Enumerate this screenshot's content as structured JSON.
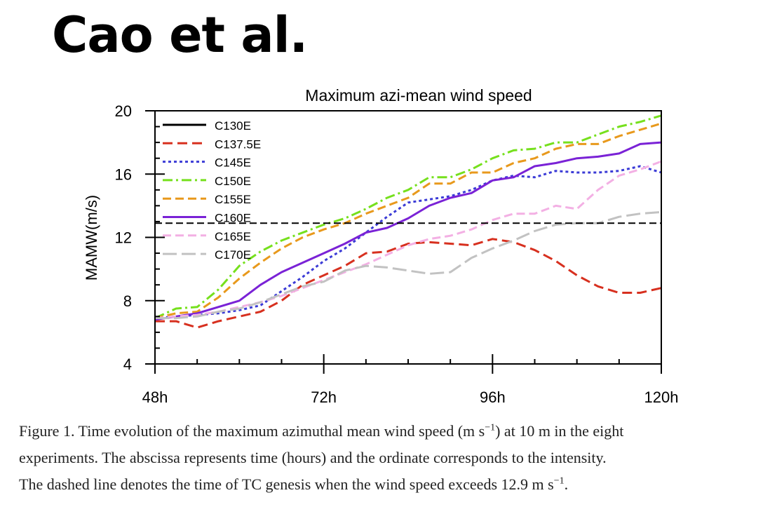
{
  "slide": {
    "heading": "Cao et al."
  },
  "caption": {
    "line1_pre": "Figure 1. Time evolution of the maximum azimuthal mean wind speed (m s",
    "line1_sup": "−1",
    "line1_post": ") at 10 m in the eight",
    "line2": "experiments. The abscissa represents time (hours) and the ordinate corresponds to the intensity.",
    "line3_pre": "The dashed line denotes the time of TC genesis when the wind speed exceeds 12.9 m s",
    "line3_sup": "−1",
    "line3_post": "."
  },
  "chart_data": {
    "type": "line",
    "title": "Maximum azi-mean wind speed",
    "xlabel": "",
    "ylabel": "MAMW(m/s)",
    "xlim": [
      48,
      120
    ],
    "ylim": [
      4,
      20
    ],
    "x_ticks": [
      48,
      72,
      96,
      120
    ],
    "x_tick_labels": [
      "48h",
      "72h",
      "96h",
      "120h"
    ],
    "y_ticks": [
      4,
      8,
      12,
      16,
      20
    ],
    "y_tick_labels": [
      "4",
      "8",
      "12",
      "16",
      "20"
    ],
    "grid": false,
    "legend_position": "top-left",
    "threshold": {
      "value": 12.9,
      "style": "dashed",
      "color": "#000000"
    },
    "x": [
      48,
      51,
      54,
      57,
      60,
      63,
      66,
      69,
      72,
      75,
      78,
      81,
      84,
      87,
      90,
      93,
      96,
      99,
      102,
      105,
      108,
      111,
      114,
      117,
      120
    ],
    "series": [
      {
        "name": "C130E",
        "color": "#000000",
        "dash": "",
        "values": null
      },
      {
        "name": "C137.5E",
        "color": "#d7301f",
        "dash": "14,7",
        "values": [
          6.7,
          6.7,
          6.3,
          6.7,
          7.0,
          7.3,
          8.0,
          9.0,
          9.6,
          10.2,
          11.0,
          11.1,
          11.6,
          11.7,
          11.6,
          11.5,
          11.9,
          11.7,
          11.2,
          10.5,
          9.6,
          8.9,
          8.5,
          8.5,
          8.8
        ]
      },
      {
        "name": "C145E",
        "color": "#3b3bd6",
        "dash": "4,4",
        "values": [
          6.9,
          7.0,
          7.1,
          7.2,
          7.4,
          7.7,
          8.6,
          9.5,
          10.5,
          11.3,
          12.3,
          13.3,
          14.2,
          14.4,
          14.6,
          15.0,
          15.6,
          15.9,
          15.8,
          16.2,
          16.1,
          16.1,
          16.2,
          16.5,
          16.1
        ]
      },
      {
        "name": "C150E",
        "color": "#76e01d",
        "dash": "14,5,3,5",
        "values": [
          6.9,
          7.5,
          7.6,
          8.7,
          10.2,
          11.1,
          11.8,
          12.3,
          12.8,
          13.2,
          13.8,
          14.5,
          15.0,
          15.8,
          15.8,
          16.3,
          17.0,
          17.5,
          17.6,
          18.0,
          18.0,
          18.5,
          19.0,
          19.3,
          19.7
        ]
      },
      {
        "name": "C155E",
        "color": "#e8991c",
        "dash": "12,6",
        "values": [
          6.9,
          7.2,
          7.3,
          8.2,
          9.4,
          10.4,
          11.3,
          12.0,
          12.5,
          12.9,
          13.5,
          14.0,
          14.5,
          15.4,
          15.4,
          16.1,
          16.1,
          16.7,
          17.0,
          17.6,
          17.9,
          17.9,
          18.4,
          18.8,
          19.2
        ]
      },
      {
        "name": "C160E",
        "color": "#7a22d6",
        "dash": "",
        "values": [
          6.8,
          7.0,
          7.2,
          7.6,
          8.0,
          9.0,
          9.8,
          10.4,
          11.0,
          11.6,
          12.3,
          12.6,
          13.2,
          14.0,
          14.5,
          14.8,
          15.6,
          15.8,
          16.5,
          16.7,
          17.0,
          17.1,
          17.3,
          17.9,
          18.0
        ]
      },
      {
        "name": "C165E",
        "color": "#f3b0e4",
        "dash": "12,6",
        "values": [
          6.9,
          7.0,
          7.1,
          7.3,
          7.6,
          7.9,
          8.3,
          8.8,
          9.3,
          9.8,
          10.3,
          10.9,
          11.5,
          11.9,
          12.1,
          12.5,
          13.1,
          13.5,
          13.5,
          14.0,
          13.8,
          15.0,
          15.9,
          16.3,
          16.8
        ]
      },
      {
        "name": "C170E",
        "color": "#c2c2c2",
        "dash": "20,7",
        "values": [
          6.9,
          6.9,
          7.0,
          7.3,
          7.5,
          7.9,
          8.4,
          8.9,
          9.2,
          9.9,
          10.2,
          10.1,
          9.9,
          9.7,
          9.8,
          10.7,
          11.3,
          11.8,
          12.4,
          12.8,
          12.9,
          12.9,
          13.3,
          13.5,
          13.6
        ]
      }
    ]
  }
}
